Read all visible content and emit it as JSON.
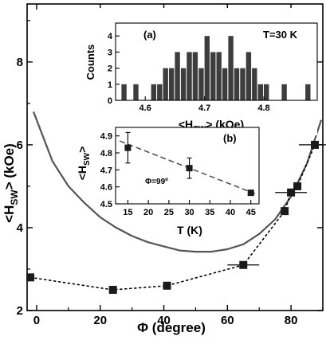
{
  "chart_data": [
    {
      "type": "scatter",
      "xlabel": "Φ (degree)",
      "ylabel": "<H_SW> (kOe)",
      "xlim": [
        -3,
        90
      ],
      "ylim": [
        2,
        9.4
      ],
      "xticks": [
        0,
        20,
        40,
        60,
        80
      ],
      "yticks": [
        2,
        4,
        6,
        8
      ],
      "series": [
        {
          "style": "squares-dotted",
          "x": [
            -2,
            24,
            41,
            65,
            78,
            80,
            82,
            87.5
          ],
          "y": [
            2.8,
            2.5,
            2.6,
            3.1,
            4.4,
            4.85,
            5.0,
            6.0
          ],
          "xerr": [
            0,
            0,
            0,
            2,
            0,
            2,
            0,
            2
          ]
        },
        {
          "style": "solid-curve",
          "x": [
            -1,
            5,
            10,
            15,
            20,
            25,
            30,
            35,
            40,
            45,
            50,
            55,
            60,
            65,
            70,
            75,
            80,
            85,
            89.5
          ],
          "y": [
            6.8,
            5.6,
            5.0,
            4.6,
            4.25,
            4.0,
            3.8,
            3.65,
            3.55,
            3.45,
            3.42,
            3.42,
            3.48,
            3.6,
            3.85,
            4.2,
            4.75,
            5.55,
            6.6
          ]
        }
      ]
    },
    {
      "type": "bar",
      "panel": "(a)",
      "annotation": "T=30 K",
      "xlabel": "<H_SW> (kOe)",
      "ylabel": "Counts",
      "xlim": [
        4.55,
        4.89
      ],
      "ylim": [
        0,
        4.8
      ],
      "xticks": [
        4.6,
        4.7,
        4.8
      ],
      "yticks": [
        0,
        1,
        2,
        3,
        4
      ],
      "bin_width": 0.01,
      "bin_centers": [
        4.565,
        4.575,
        4.585,
        4.595,
        4.605,
        4.615,
        4.625,
        4.635,
        4.645,
        4.655,
        4.665,
        4.675,
        4.685,
        4.695,
        4.705,
        4.715,
        4.725,
        4.735,
        4.745,
        4.755,
        4.765,
        4.775,
        4.785,
        4.795,
        4.805,
        4.815,
        4.825,
        4.835,
        4.845,
        4.855,
        4.865,
        4.875
      ],
      "values": [
        1,
        0,
        1,
        0,
        0,
        1,
        1,
        2,
        2,
        3,
        2,
        3,
        3,
        2,
        4,
        3,
        3,
        2,
        4,
        2,
        2,
        3,
        2,
        1,
        1,
        0,
        0,
        1,
        0,
        0,
        0,
        1
      ]
    },
    {
      "type": "scatter",
      "panel": "(b)",
      "annotation": "Φ=99º",
      "xlabel": "T (K)",
      "ylabel": "<H_SW>",
      "xlim": [
        12,
        47
      ],
      "ylim": [
        4.5,
        4.95
      ],
      "xticks": [
        15,
        20,
        25,
        30,
        35,
        40,
        45
      ],
      "yticks": [
        4.5,
        4.6,
        4.7,
        4.8,
        4.9
      ],
      "series": [
        {
          "style": "squares-errorbars",
          "x": [
            15,
            30,
            45
          ],
          "y": [
            4.83,
            4.71,
            4.565
          ],
          "yerr": [
            0.09,
            0.06,
            0.0
          ]
        },
        {
          "style": "dashed-fit",
          "x": [
            13,
            46
          ],
          "y": [
            4.87,
            4.56
          ]
        }
      ]
    }
  ],
  "text": {
    "main_xlabel_sym": "Φ",
    "main_xlabel_rest": " (degree)",
    "main_ylabel_l": "<H",
    "main_ylabel_sub": "SW",
    "main_ylabel_r": "> (kOe)",
    "a_panel": "(a)",
    "a_temp": "T=30 K",
    "a_ylabel": "Counts",
    "a_xlabel_l": "<H",
    "a_xlabel_sub": "SW",
    "a_xlabel_r": "> (kOe)",
    "b_panel": "(b)",
    "b_angle": "Φ=99º",
    "b_xlabel": "T (K)",
    "b_ylabel_l": "<H",
    "b_ylabel_sub": "SW",
    "b_ylabel_r": ">"
  }
}
